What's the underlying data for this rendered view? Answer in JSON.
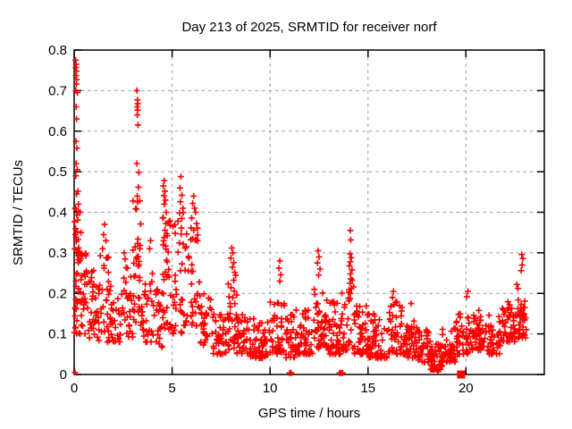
{
  "window": {
    "background": "#ffffff"
  },
  "chart_data": {
    "type": "scatter",
    "title": "Day 213 of 2025, SRMTID for receiver norf",
    "xlabel": "GPS time / hours",
    "ylabel": "SRMTID / TECUs",
    "xlim": [
      0,
      24
    ],
    "ylim": [
      0,
      0.8
    ],
    "xticks": [
      0,
      5,
      10,
      15,
      20
    ],
    "yticks": [
      0,
      0.1,
      0.2,
      0.3,
      0.4,
      0.5,
      0.6,
      0.7,
      0.8
    ],
    "grid": true,
    "legend": "none",
    "colors": {
      "marker": "#ff0000",
      "grid": "#9a9a9a",
      "axis": "#000000",
      "text": "#000000"
    },
    "marker": {
      "shape": "plus",
      "size": 7,
      "stroke_width": 1.6
    },
    "square_marker": {
      "x": 19.75,
      "y": 0.0,
      "size": 9,
      "note": "solid red square cluster on axis"
    },
    "notable_points": [
      [
        0.07,
        0.775
      ],
      [
        0.1,
        0.765
      ],
      [
        0.08,
        0.757
      ],
      [
        0.12,
        0.748
      ],
      [
        0.09,
        0.737
      ],
      [
        0.13,
        0.727
      ],
      [
        0.11,
        0.716
      ],
      [
        0.08,
        0.7
      ],
      [
        0.17,
        0.695
      ],
      [
        0.1,
        0.66
      ],
      [
        0.12,
        0.63
      ],
      [
        0.09,
        0.575
      ],
      [
        0.14,
        0.558
      ],
      [
        0.1,
        0.52
      ],
      [
        0.16,
        0.505
      ],
      [
        0.08,
        0.49
      ],
      [
        0.19,
        0.452
      ],
      [
        0.12,
        0.445
      ],
      [
        0.22,
        0.42
      ],
      [
        0.05,
        0.41
      ],
      [
        0.15,
        0.352
      ],
      [
        0.06,
        0.345
      ],
      [
        0.09,
        0.338
      ],
      [
        0.2,
        0.333
      ],
      [
        0.11,
        0.328
      ],
      [
        0.3,
        0.4
      ],
      [
        0.35,
        0.35
      ],
      [
        0.04,
        0.005
      ],
      [
        1.55,
        0.37
      ],
      [
        1.5,
        0.345
      ],
      [
        1.62,
        0.33
      ],
      [
        1.45,
        0.31
      ],
      [
        2.55,
        0.3
      ],
      [
        2.6,
        0.285
      ],
      [
        3.2,
        0.7
      ],
      [
        3.23,
        0.677
      ],
      [
        3.25,
        0.668
      ],
      [
        3.21,
        0.66
      ],
      [
        3.24,
        0.652
      ],
      [
        3.22,
        0.64
      ],
      [
        3.26,
        0.615
      ],
      [
        3.2,
        0.52
      ],
      [
        3.3,
        0.498
      ],
      [
        3.28,
        0.462
      ],
      [
        3.22,
        0.44
      ],
      [
        3.35,
        0.428
      ],
      [
        3.18,
        0.408
      ],
      [
        3.9,
        0.33
      ],
      [
        3.85,
        0.31
      ],
      [
        4.6,
        0.478
      ],
      [
        4.55,
        0.465
      ],
      [
        4.63,
        0.452
      ],
      [
        4.58,
        0.441
      ],
      [
        4.66,
        0.43
      ],
      [
        4.6,
        0.42
      ],
      [
        4.7,
        0.4
      ],
      [
        4.52,
        0.386
      ],
      [
        4.68,
        0.372
      ],
      [
        4.63,
        0.356
      ],
      [
        4.75,
        0.342
      ],
      [
        4.57,
        0.33
      ],
      [
        4.8,
        0.302
      ],
      [
        4.72,
        0.282
      ],
      [
        5.45,
        0.488
      ],
      [
        5.4,
        0.46
      ],
      [
        5.5,
        0.442
      ],
      [
        5.42,
        0.426
      ],
      [
        5.55,
        0.41
      ],
      [
        5.38,
        0.398
      ],
      [
        5.47,
        0.346
      ],
      [
        6.1,
        0.44
      ],
      [
        6.05,
        0.422
      ],
      [
        6.15,
        0.41
      ],
      [
        6.2,
        0.4
      ],
      [
        6.0,
        0.386
      ],
      [
        6.25,
        0.372
      ],
      [
        6.1,
        0.356
      ],
      [
        6.3,
        0.344
      ],
      [
        6.18,
        0.332
      ],
      [
        8.05,
        0.312
      ],
      [
        8.1,
        0.3
      ],
      [
        8.0,
        0.287
      ],
      [
        8.15,
        0.276
      ],
      [
        8.08,
        0.265
      ],
      [
        8.2,
        0.252
      ],
      [
        10.5,
        0.28
      ],
      [
        10.45,
        0.262
      ],
      [
        10.55,
        0.246
      ],
      [
        10.5,
        0.23
      ],
      [
        11.0,
        0.004
      ],
      [
        11.08,
        0.004
      ],
      [
        12.45,
        0.305
      ],
      [
        12.5,
        0.29
      ],
      [
        12.42,
        0.275
      ],
      [
        12.55,
        0.26
      ],
      [
        12.48,
        0.245
      ],
      [
        13.55,
        0.004
      ],
      [
        13.62,
        0.004
      ],
      [
        13.7,
        0.004
      ],
      [
        14.1,
        0.355
      ],
      [
        14.12,
        0.332
      ],
      [
        14.08,
        0.298
      ],
      [
        14.15,
        0.288
      ],
      [
        14.1,
        0.278
      ],
      [
        14.05,
        0.268
      ],
      [
        14.18,
        0.258
      ],
      [
        14.1,
        0.248
      ],
      [
        14.12,
        0.236
      ],
      [
        14.08,
        0.225
      ],
      [
        14.15,
        0.212
      ],
      [
        14.1,
        0.2
      ],
      [
        16.3,
        0.205
      ],
      [
        16.25,
        0.19
      ],
      [
        17.2,
        0.175
      ],
      [
        18.5,
        0.012
      ],
      [
        18.58,
        0.01
      ],
      [
        18.45,
        0.015
      ],
      [
        20.1,
        0.205
      ],
      [
        20.05,
        0.192
      ],
      [
        22.6,
        0.222
      ],
      [
        22.66,
        0.212
      ],
      [
        22.85,
        0.296
      ],
      [
        22.9,
        0.286
      ],
      [
        22.87,
        0.27
      ],
      [
        22.82,
        0.256
      ],
      [
        23.0,
        0.165
      ],
      [
        22.95,
        0.15
      ],
      [
        23.05,
        0.14
      ]
    ],
    "density_bands": [
      [
        0.0,
        0.3,
        0.1,
        0.42,
        26
      ],
      [
        0.05,
        0.35,
        0.18,
        0.32,
        14
      ],
      [
        0.3,
        0.7,
        0.1,
        0.3,
        28
      ],
      [
        0.7,
        1.2,
        0.09,
        0.26,
        30
      ],
      [
        1.2,
        1.8,
        0.08,
        0.3,
        34
      ],
      [
        1.8,
        2.4,
        0.08,
        0.22,
        30
      ],
      [
        2.4,
        3.0,
        0.09,
        0.28,
        30
      ],
      [
        3.0,
        3.45,
        0.12,
        0.44,
        34
      ],
      [
        3.45,
        4.0,
        0.08,
        0.26,
        28
      ],
      [
        4.0,
        4.5,
        0.06,
        0.22,
        24
      ],
      [
        4.5,
        5.0,
        0.11,
        0.4,
        32
      ],
      [
        5.0,
        5.6,
        0.1,
        0.4,
        32
      ],
      [
        5.6,
        6.4,
        0.12,
        0.38,
        40
      ],
      [
        6.4,
        7.0,
        0.07,
        0.2,
        30
      ],
      [
        7.0,
        7.8,
        0.05,
        0.15,
        40
      ],
      [
        7.8,
        8.3,
        0.06,
        0.27,
        34
      ],
      [
        8.3,
        9.0,
        0.05,
        0.15,
        42
      ],
      [
        9.0,
        10.0,
        0.04,
        0.14,
        56
      ],
      [
        10.0,
        10.8,
        0.05,
        0.19,
        46
      ],
      [
        10.8,
        11.3,
        0.04,
        0.15,
        34
      ],
      [
        11.3,
        12.2,
        0.05,
        0.16,
        50
      ],
      [
        12.2,
        13.0,
        0.06,
        0.21,
        50
      ],
      [
        13.0,
        13.6,
        0.05,
        0.18,
        40
      ],
      [
        13.6,
        14.3,
        0.06,
        0.26,
        34
      ],
      [
        14.3,
        15.0,
        0.05,
        0.17,
        48
      ],
      [
        15.0,
        16.0,
        0.04,
        0.15,
        56
      ],
      [
        16.0,
        16.8,
        0.05,
        0.18,
        46
      ],
      [
        16.8,
        17.5,
        0.04,
        0.14,
        46
      ],
      [
        17.5,
        18.2,
        0.03,
        0.11,
        44
      ],
      [
        18.2,
        18.8,
        0.012,
        0.08,
        44
      ],
      [
        18.8,
        19.5,
        0.03,
        0.12,
        44
      ],
      [
        19.5,
        20.3,
        0.05,
        0.15,
        46
      ],
      [
        20.3,
        21.0,
        0.06,
        0.16,
        46
      ],
      [
        21.0,
        21.8,
        0.05,
        0.15,
        44
      ],
      [
        21.8,
        22.5,
        0.08,
        0.18,
        44
      ],
      [
        22.5,
        23.1,
        0.09,
        0.19,
        38
      ]
    ],
    "band_skew": 1.6,
    "seed": 7
  }
}
